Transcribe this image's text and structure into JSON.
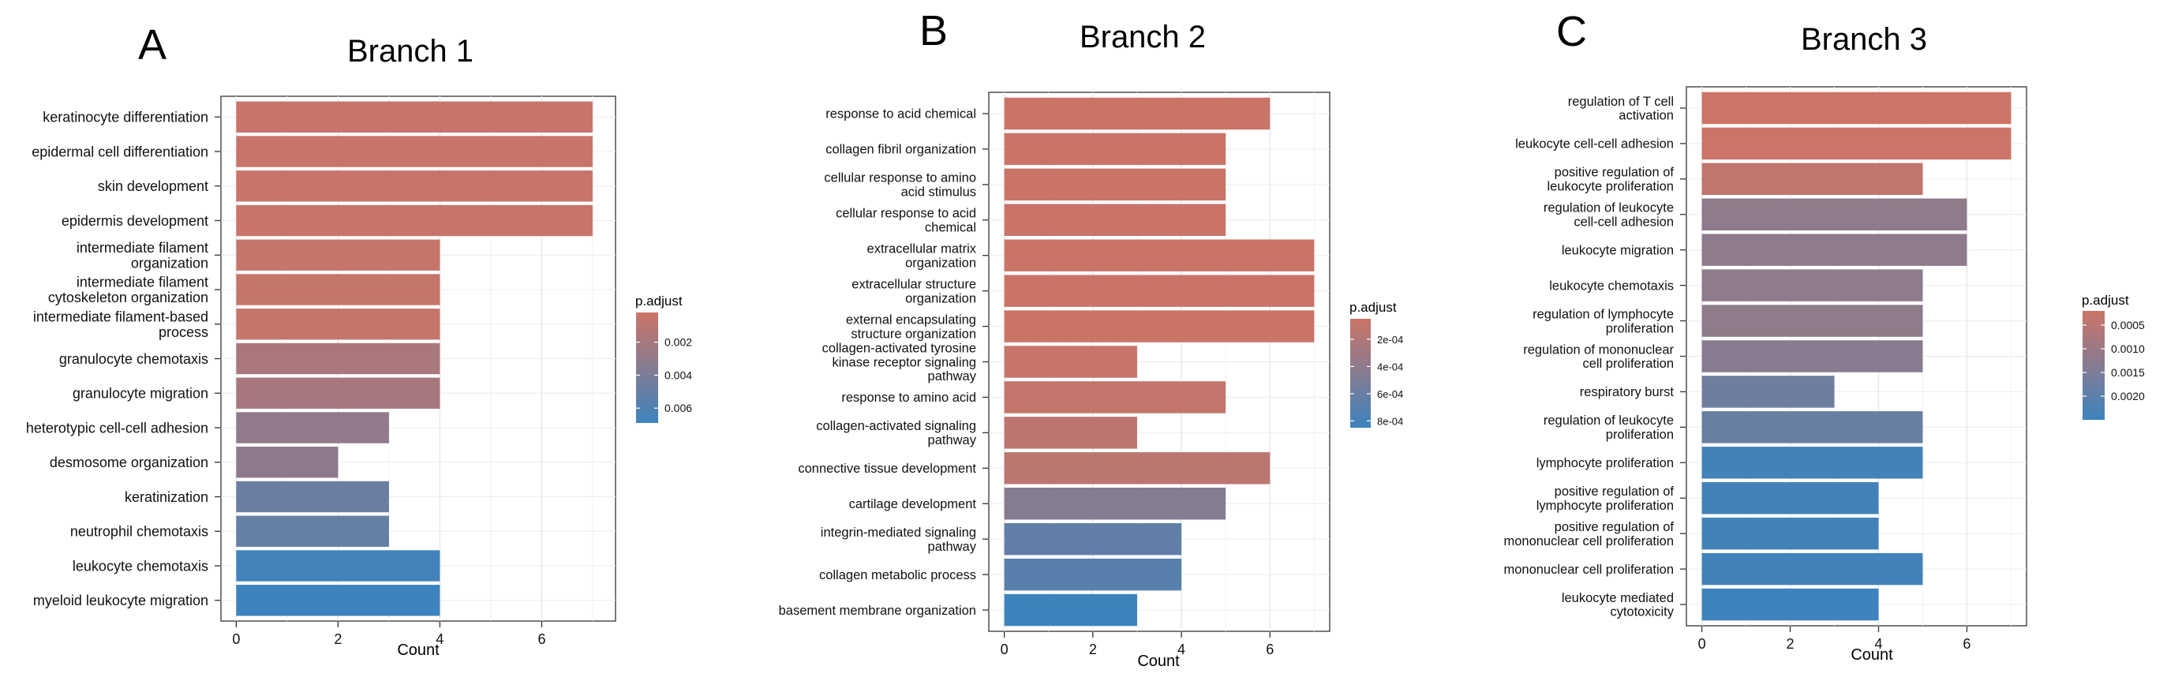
{
  "chart_data": [
    {
      "type": "bar",
      "orientation": "horizontal",
      "panel_label": "A",
      "title": "Branch 1",
      "xlabel": "Count",
      "ylabel": "",
      "xlim": [
        -0.3,
        7.45
      ],
      "xticks": [
        "0",
        "2",
        "4",
        "6"
      ],
      "grid": true,
      "legend": {
        "title": "p.adjust",
        "placement": "right",
        "min": 0.0002,
        "max": 0.0069,
        "ticks": [
          "0.002",
          "0.004",
          "0.006"
        ],
        "tick_values": [
          0.002,
          0.004,
          0.006
        ]
      },
      "categories": [
        "keratinocyte differentiation",
        "epidermal cell differentiation",
        "skin development",
        "epidermis development",
        "intermediate filament organization",
        "intermediate filament cytoskeleton organization",
        "intermediate filament-based process",
        "granulocyte chemotaxis",
        "granulocyte migration",
        "heterotypic cell-cell adhesion",
        "desmosome organization",
        "keratinization",
        "neutrophil chemotaxis",
        "leukocyte chemotaxis",
        "myeloid leukocyte migration"
      ],
      "label_lines": [
        [
          "keratinocyte differentiation"
        ],
        [
          "epidermal cell differentiation"
        ],
        [
          "skin development"
        ],
        [
          "epidermis development"
        ],
        [
          "intermediate filament",
          "organization"
        ],
        [
          "intermediate filament",
          "cytoskeleton organization"
        ],
        [
          "intermediate filament-based",
          "process"
        ],
        [
          "granulocyte chemotaxis"
        ],
        [
          "granulocyte migration"
        ],
        [
          "heterotypic cell-cell adhesion"
        ],
        [
          "desmosome organization"
        ],
        [
          "keratinization"
        ],
        [
          "neutrophil chemotaxis"
        ],
        [
          "leukocyte chemotaxis"
        ],
        [
          "myeloid leukocyte migration"
        ]
      ],
      "values": [
        7,
        7,
        7,
        7,
        4,
        4,
        4,
        4,
        4,
        3,
        2,
        3,
        3,
        4,
        4
      ],
      "p_adjust": [
        0.0004,
        0.0004,
        0.0004,
        0.0004,
        0.0005,
        0.0005,
        0.0005,
        0.0018,
        0.002,
        0.003,
        0.0031,
        0.0048,
        0.005,
        0.0067,
        0.0069
      ],
      "colors": {
        "low": "#cc7467",
        "high": "#3d83bd"
      }
    },
    {
      "type": "bar",
      "orientation": "horizontal",
      "panel_label": "B",
      "title": "Branch 2",
      "xlabel": "Count",
      "ylabel": "",
      "xlim": [
        -0.35,
        7.35
      ],
      "xticks": [
        "0",
        "2",
        "4",
        "6"
      ],
      "grid": true,
      "legend": {
        "title": "p.adjust",
        "placement": "right",
        "min": 5e-05,
        "max": 0.00085,
        "ticks": [
          "2e-04",
          "4e-04",
          "6e-04",
          "8e-04"
        ],
        "tick_values": [
          0.0002,
          0.0004,
          0.0006,
          0.0008
        ]
      },
      "categories": [
        "response to acid chemical",
        "collagen fibril organization",
        "cellular response to amino acid stimulus",
        "cellular response to acid chemical",
        "extracellular matrix organization",
        "extracellular structure organization",
        "external encapsulating structure organization",
        "collagen-activated tyrosine kinase receptor signaling pathway",
        "response to amino acid",
        "collagen-activated signaling pathway",
        "connective tissue development",
        "cartilage development",
        "integrin-mediated signaling pathway",
        "collagen metabolic process",
        "basement membrane organization"
      ],
      "label_lines": [
        [
          "response to acid chemical"
        ],
        [
          "collagen fibril organization"
        ],
        [
          "cellular response to amino",
          "acid stimulus"
        ],
        [
          "cellular response to acid",
          "chemical"
        ],
        [
          "extracellular matrix",
          "organization"
        ],
        [
          "extracellular structure",
          "organization"
        ],
        [
          "external encapsulating",
          "structure organization"
        ],
        [
          "collagen-activated tyrosine",
          "kinase receptor signaling",
          "pathway"
        ],
        [
          "response to amino acid"
        ],
        [
          "collagen-activated signaling",
          "pathway"
        ],
        [
          "connective tissue development"
        ],
        [
          "cartilage development"
        ],
        [
          "integrin-mediated signaling",
          "pathway"
        ],
        [
          "collagen metabolic process"
        ],
        [
          "basement membrane organization"
        ]
      ],
      "values": [
        6,
        5,
        5,
        5,
        7,
        7,
        7,
        3,
        5,
        3,
        6,
        5,
        4,
        4,
        3
      ],
      "p_adjust": [
        6e-05,
        6e-05,
        6e-05,
        6e-05,
        6e-05,
        6e-05,
        6e-05,
        8e-05,
        0.0001,
        0.00012,
        0.00014,
        0.00045,
        0.00065,
        0.0007,
        0.00085
      ],
      "colors": {
        "low": "#cc7467",
        "high": "#3d83bd"
      }
    },
    {
      "type": "bar",
      "orientation": "horizontal",
      "panel_label": "C",
      "title": "Branch 3",
      "xlabel": "Count",
      "ylabel": "",
      "xlim": [
        -0.35,
        7.35
      ],
      "xticks": [
        "0",
        "2",
        "4",
        "6"
      ],
      "grid": true,
      "legend": {
        "title": "p.adjust",
        "placement": "right",
        "min": 0.0002,
        "max": 0.0025,
        "ticks": [
          "0.0005",
          "0.0010",
          "0.0015",
          "0.0020"
        ],
        "tick_values": [
          0.0005,
          0.001,
          0.0015,
          0.002
        ]
      },
      "categories": [
        "regulation of T cell activation",
        "leukocyte cell-cell adhesion",
        "positive regulation of leukocyte proliferation",
        "regulation of leukocyte cell-cell adhesion",
        "leukocyte migration",
        "leukocyte chemotaxis",
        "regulation of lymphocyte proliferation",
        "regulation of mononuclear cell proliferation",
        "respiratory burst",
        "regulation of leukocyte proliferation",
        "lymphocyte proliferation",
        "positive regulation of lymphocyte proliferation",
        "positive regulation of mononuclear cell proliferation",
        "mononuclear cell proliferation",
        "leukocyte mediated cytotoxicity"
      ],
      "label_lines": [
        [
          "regulation of T cell",
          "activation"
        ],
        [
          "leukocyte cell-cell adhesion"
        ],
        [
          "positive regulation of",
          "leukocyte proliferation"
        ],
        [
          "regulation of leukocyte",
          "cell-cell adhesion"
        ],
        [
          "leukocyte migration"
        ],
        [
          "leukocyte chemotaxis"
        ],
        [
          "regulation of lymphocyte",
          "proliferation"
        ],
        [
          "regulation of mononuclear",
          "cell proliferation"
        ],
        [
          "respiratory burst"
        ],
        [
          "regulation of leukocyte",
          "proliferation"
        ],
        [
          "lymphocyte proliferation"
        ],
        [
          "positive regulation of",
          "lymphocyte proliferation"
        ],
        [
          "positive regulation of",
          "mononuclear cell proliferation"
        ],
        [
          "mononuclear cell proliferation"
        ],
        [
          "leukocyte mediated",
          "cytotoxicity"
        ]
      ],
      "values": [
        7,
        7,
        5,
        6,
        6,
        5,
        5,
        5,
        3,
        5,
        5,
        4,
        4,
        5,
        4
      ],
      "p_adjust": [
        0.0002,
        0.0002,
        0.0004,
        0.0012,
        0.0012,
        0.0012,
        0.0012,
        0.0013,
        0.0017,
        0.0018,
        0.0024,
        0.0024,
        0.0024,
        0.0024,
        0.0025
      ],
      "colors": {
        "low": "#cc7467",
        "high": "#3d83bd"
      }
    }
  ]
}
